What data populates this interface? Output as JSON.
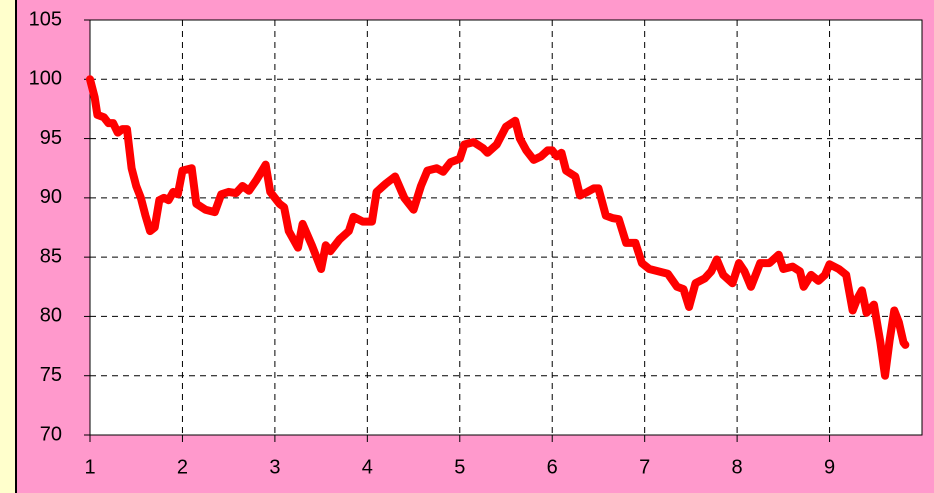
{
  "chart_data": {
    "type": "line",
    "x": [
      1.0,
      1.05,
      1.08,
      1.15,
      1.2,
      1.25,
      1.3,
      1.35,
      1.4,
      1.45,
      1.5,
      1.55,
      1.6,
      1.65,
      1.7,
      1.75,
      1.8,
      1.85,
      1.9,
      1.95,
      2.0,
      2.1,
      2.15,
      2.25,
      2.35,
      2.42,
      2.5,
      2.58,
      2.65,
      2.72,
      2.8,
      2.9,
      2.95,
      3.05,
      3.1,
      3.15,
      3.25,
      3.3,
      3.4,
      3.5,
      3.55,
      3.6,
      3.7,
      3.8,
      3.85,
      3.95,
      4.05,
      4.1,
      4.2,
      4.3,
      4.4,
      4.5,
      4.58,
      4.65,
      4.75,
      4.82,
      4.9,
      5.0,
      5.05,
      5.15,
      5.25,
      5.3,
      5.4,
      5.5,
      5.6,
      5.65,
      5.72,
      5.8,
      5.88,
      5.95,
      6.0,
      6.05,
      6.1,
      6.15,
      6.25,
      6.3,
      6.38,
      6.45,
      6.5,
      6.58,
      6.65,
      6.72,
      6.8,
      6.9,
      6.97,
      7.05,
      7.15,
      7.25,
      7.35,
      7.42,
      7.48,
      7.55,
      7.65,
      7.72,
      7.78,
      7.85,
      7.95,
      8.02,
      8.08,
      8.15,
      8.25,
      8.35,
      8.45,
      8.5,
      8.6,
      8.68,
      8.72,
      8.8,
      8.88,
      8.95,
      9.0,
      9.1,
      9.18,
      9.25,
      9.3,
      9.35,
      9.4,
      9.48,
      9.55,
      9.6,
      9.65,
      9.7,
      9.75,
      9.8,
      9.82
    ],
    "series": [
      {
        "color": "#ff0000",
        "values": [
          100,
          98.5,
          97,
          96.8,
          96.3,
          96.3,
          95.5,
          95.8,
          95.8,
          92.5,
          91,
          90,
          88.5,
          87.2,
          87.5,
          89.8,
          90,
          89.8,
          90.5,
          90.3,
          92.3,
          92.5,
          89.5,
          89,
          88.8,
          90.3,
          90.5,
          90.4,
          91,
          90.6,
          91.5,
          92.8,
          90.5,
          89.5,
          89.2,
          87.2,
          85.8,
          87.8,
          86,
          84,
          86,
          85.5,
          86.5,
          87.2,
          88.4,
          88,
          88,
          90.5,
          91.2,
          91.8,
          90,
          89,
          91,
          92.3,
          92.5,
          92.2,
          93,
          93.3,
          94.5,
          94.7,
          94.2,
          93.8,
          94.5,
          96,
          96.5,
          95,
          94,
          93.2,
          93.5,
          94,
          94,
          93.5,
          93.8,
          92.3,
          91.8,
          90.2,
          90.5,
          90.8,
          90.8,
          88.5,
          88.3,
          88.2,
          86.2,
          86.2,
          84.5,
          84,
          83.8,
          83.6,
          82.5,
          82.3,
          80.8,
          82.8,
          83.2,
          83.8,
          84.8,
          83.5,
          82.8,
          84.5,
          83.8,
          82.5,
          84.5,
          84.5,
          85.2,
          84,
          84.2,
          83.8,
          82.5,
          83.5,
          83,
          83.5,
          84.4,
          84,
          83.5,
          80.5,
          81.5,
          82.2,
          80.3,
          81,
          77.8,
          75,
          78,
          80.5,
          79.5,
          77.8,
          77.6
        ]
      }
    ],
    "xlim": [
      1,
      10
    ],
    "xticks": [
      1,
      2,
      3,
      4,
      5,
      6,
      7,
      8,
      9
    ],
    "ylim": [
      70,
      105
    ],
    "yticks": [
      70,
      75,
      80,
      85,
      90,
      95,
      100,
      105
    ],
    "grid": true
  }
}
